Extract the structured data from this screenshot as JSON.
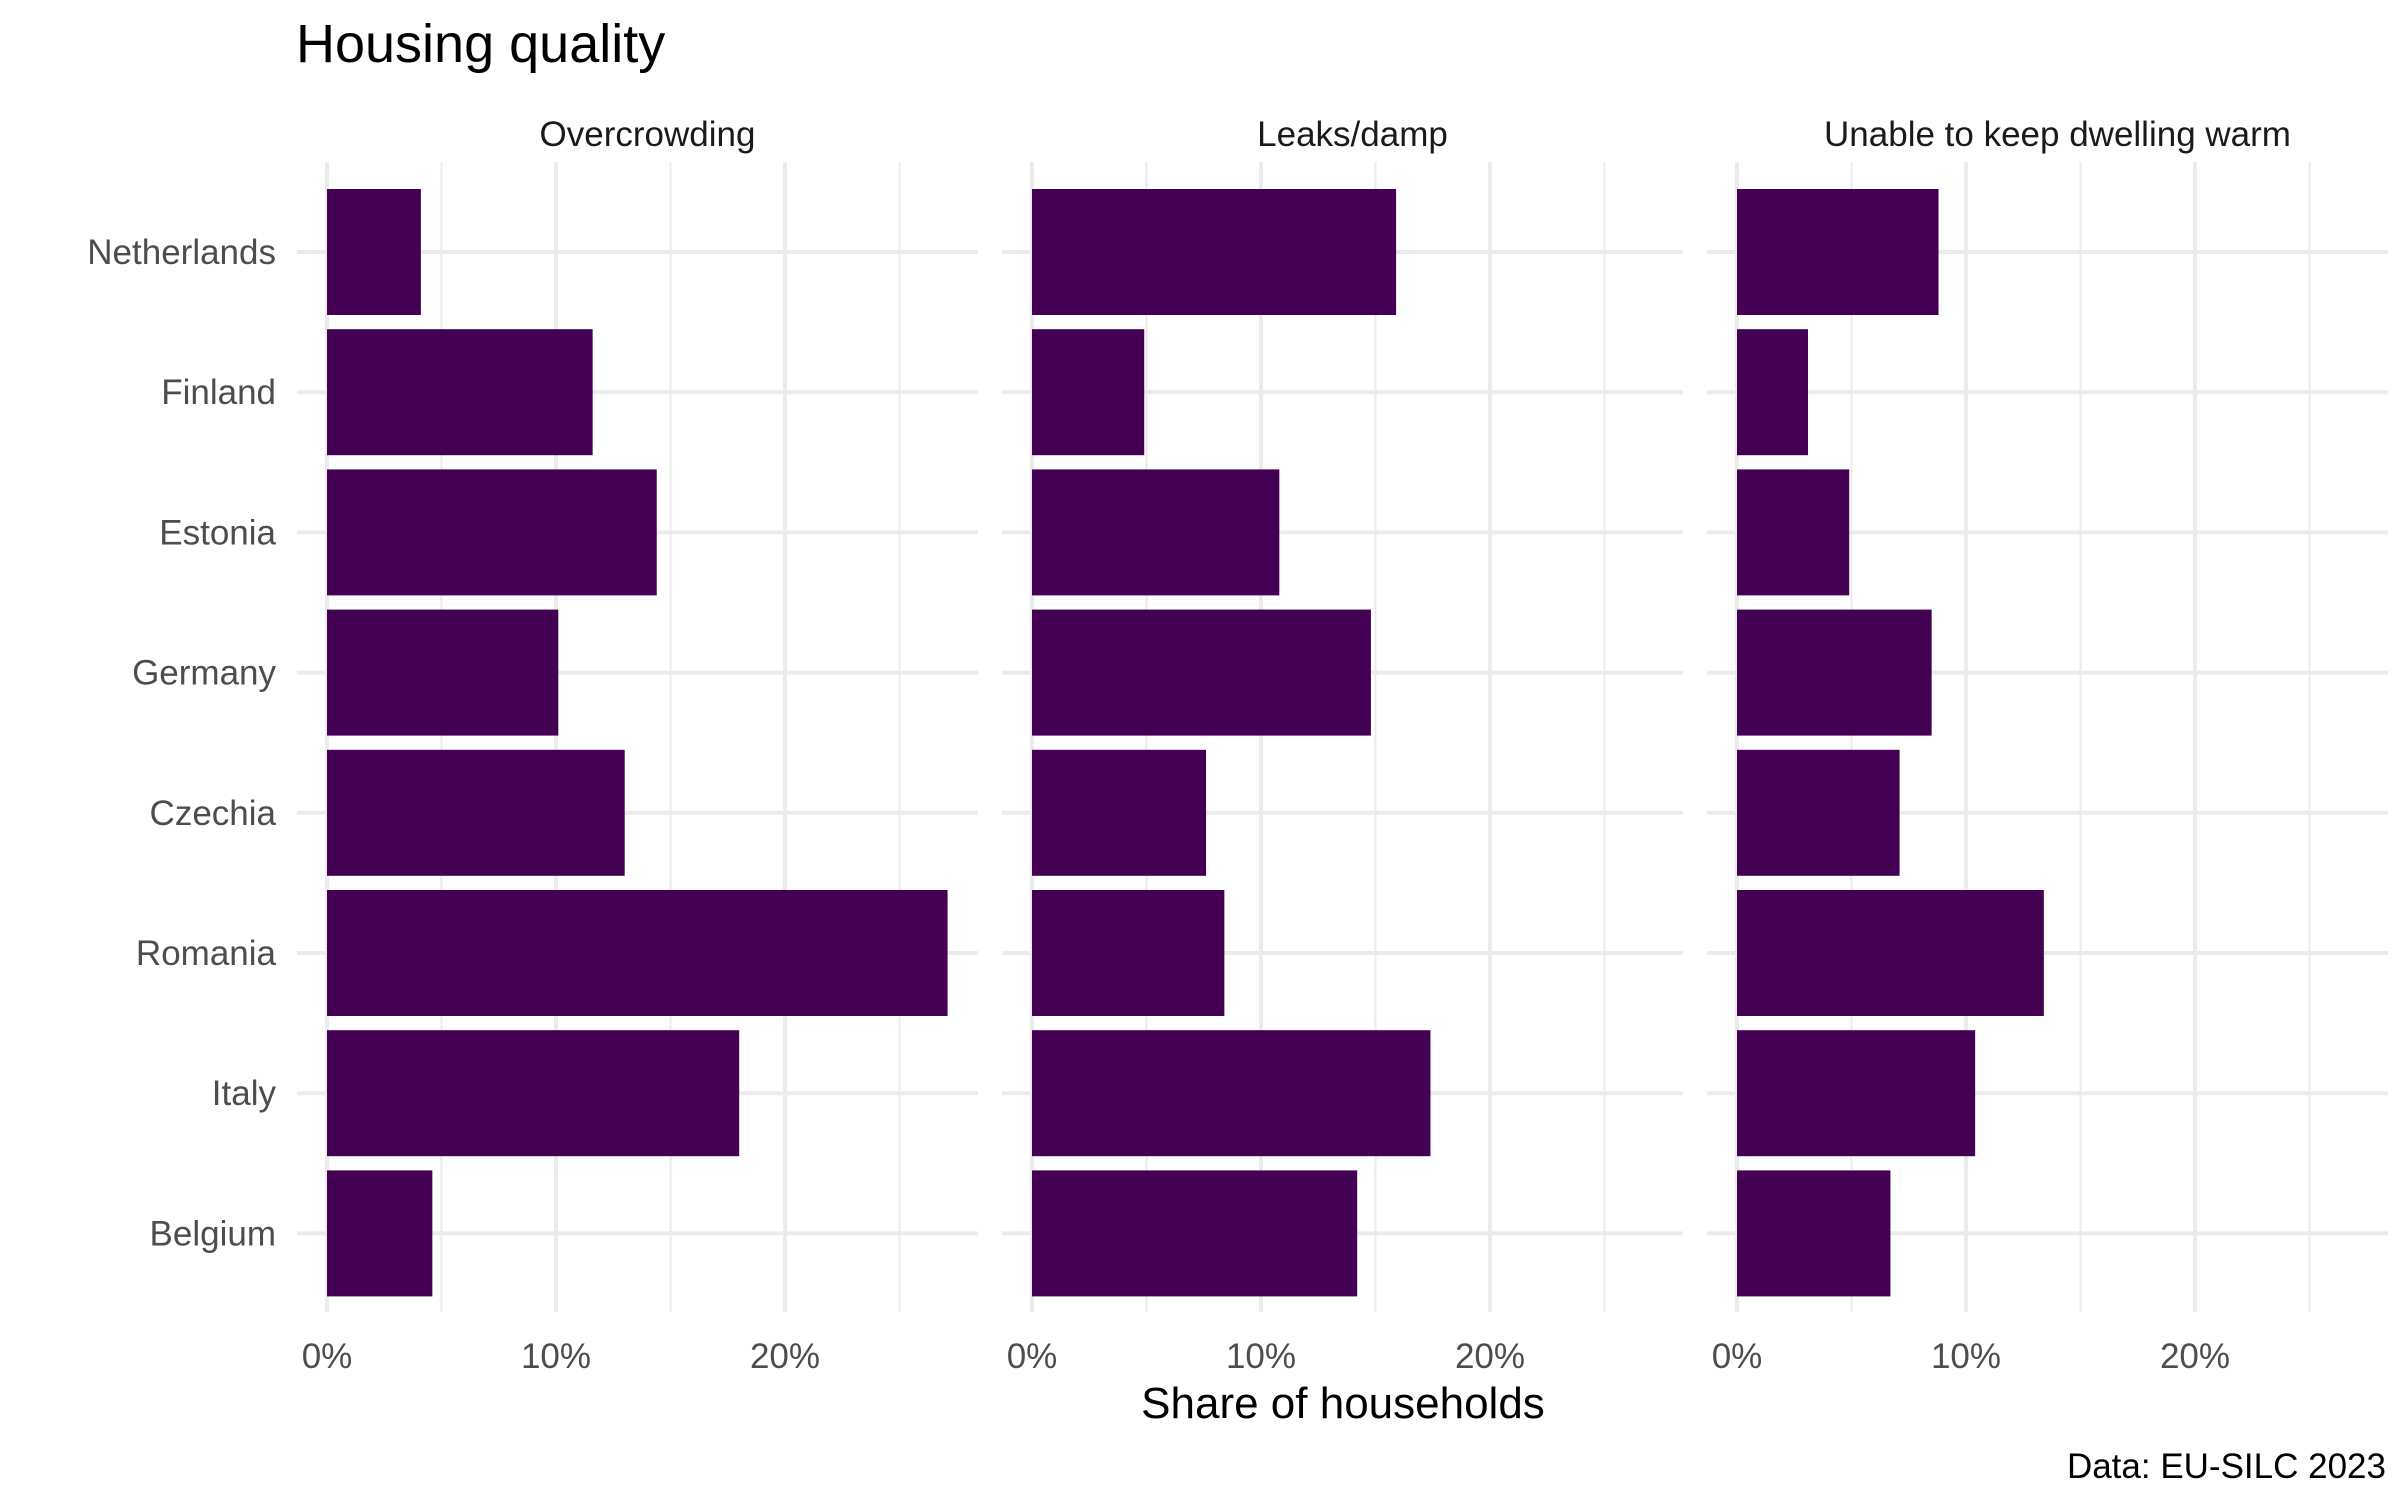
{
  "chart_data": {
    "type": "bar",
    "orientation": "horizontal",
    "faceted": true,
    "title": "Housing quality",
    "xlabel": "Share of households",
    "caption": "Data: EU-SILC 2023",
    "categories": [
      "Netherlands",
      "Finland",
      "Estonia",
      "Germany",
      "Czechia",
      "Romania",
      "Italy",
      "Belgium"
    ],
    "xlim": [
      0,
      0.28
    ],
    "x_ticks": [
      0,
      0.1,
      0.2
    ],
    "x_tick_labels": [
      "0%",
      "10%",
      "20%"
    ],
    "grid": true,
    "color": "#440154",
    "panels": [
      {
        "name": "Overcrowding",
        "values": [
          0.041,
          0.116,
          0.144,
          0.101,
          0.13,
          0.271,
          0.18,
          0.046
        ]
      },
      {
        "name": "Leaks/damp",
        "values": [
          0.159,
          0.049,
          0.108,
          0.148,
          0.076,
          0.084,
          0.174,
          0.142
        ]
      },
      {
        "name": "Unable to keep dwelling warm",
        "values": [
          0.088,
          0.031,
          0.049,
          0.085,
          0.071,
          0.134,
          0.104,
          0.067
        ]
      }
    ]
  }
}
